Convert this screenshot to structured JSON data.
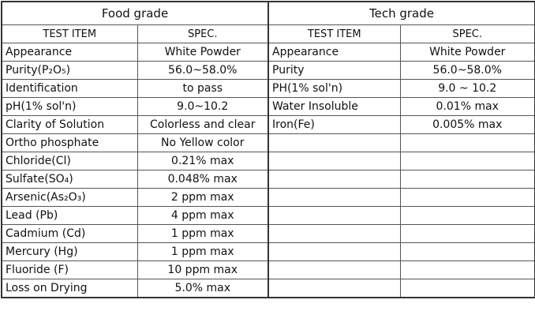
{
  "food": {
    "title": "Food grade",
    "headers": [
      "TEST ITEM",
      "SPEC."
    ],
    "rows": [
      [
        "Appearance",
        "White Powder"
      ],
      [
        "Purity(P₂O₅)",
        "56.0~58.0%"
      ],
      [
        "Identification",
        "to pass"
      ],
      [
        "pH(1% sol'n)",
        "9.0~10.2"
      ],
      [
        "Clarity of Solution",
        "Colorless and clear"
      ],
      [
        "Ortho phosphate",
        "No Yellow color"
      ],
      [
        "Chloride(Cl)",
        "0.21% max"
      ],
      [
        "Sulfate(SO₄)",
        "0.048% max"
      ],
      [
        "Arsenic(As₂O₃)",
        "2 ppm max"
      ],
      [
        "Lead (Pb)",
        "4 ppm max"
      ],
      [
        "Cadmium (Cd)",
        "1 ppm max"
      ],
      [
        "Mercury (Hg)",
        "1 ppm max"
      ],
      [
        "Fluoride (F)",
        "10 ppm max"
      ],
      [
        "Loss on Drying",
        "5.0% max"
      ]
    ]
  },
  "tech": {
    "title": "Tech grade",
    "headers": [
      "TEST ITEM",
      "SPEC."
    ],
    "rows": [
      [
        "Appearance",
        "White Powder"
      ],
      [
        "Purity",
        "56.0~58.0%"
      ],
      [
        "PH(1% sol'n)",
        "9.0 ~ 10.2"
      ],
      [
        "Water Insoluble",
        "0.01% max"
      ],
      [
        "Iron(Fe)",
        "0.005% max"
      ]
    ]
  }
}
